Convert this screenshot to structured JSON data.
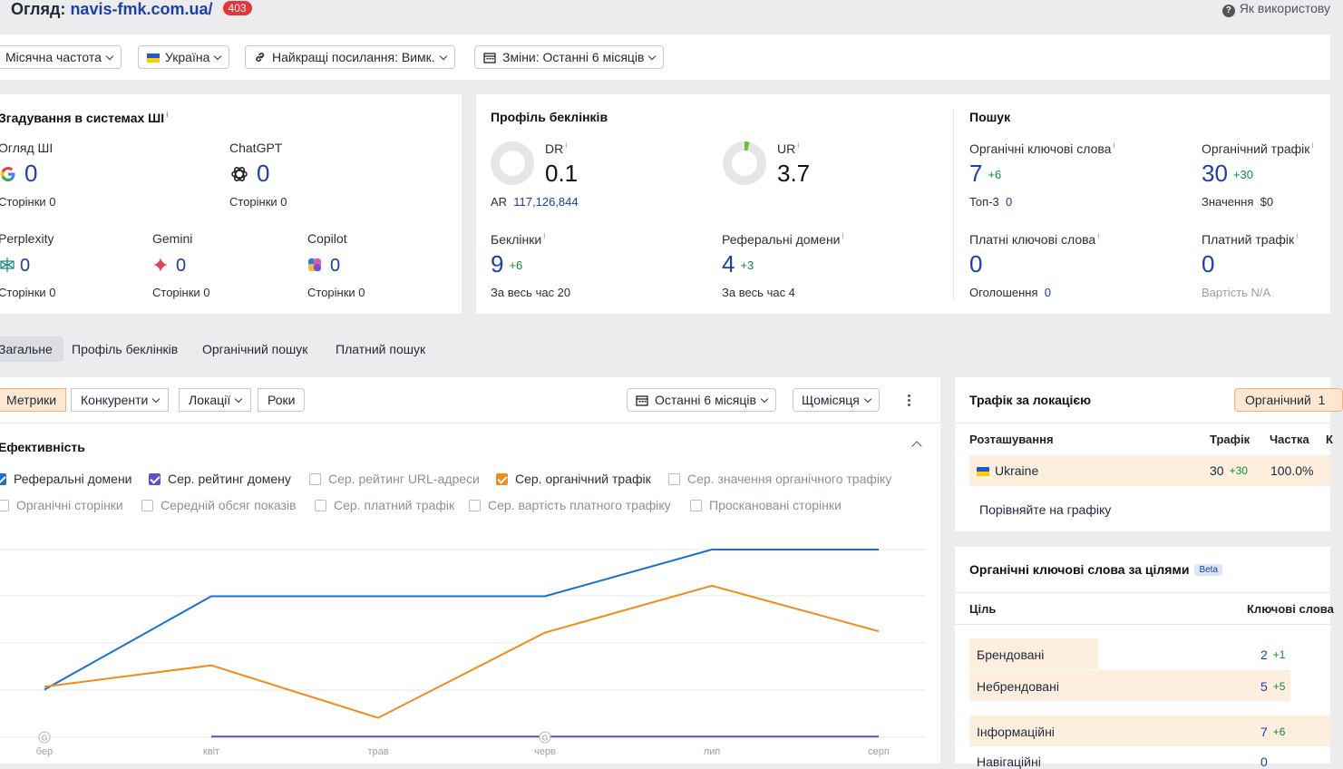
{
  "header": {
    "title_prefix": "Огляд:",
    "domain": "navis-fmk.com.ua/",
    "badge": "403",
    "help_label": "Як використову"
  },
  "filters": {
    "frequency": "Місячна частота",
    "country": "Україна",
    "best_links": "Найкращі посилання: Вимк.",
    "changes": "Зміни: Останні 6 місяців"
  },
  "ai_card": {
    "title": "Згадування в системах ШІ",
    "google_label": "Огляд ШІ",
    "google_value": "0",
    "google_pages": "Сторінки  0",
    "chatgpt_label": "ChatGPT",
    "chatgpt_value": "0",
    "chatgpt_pages": "Сторінки  0",
    "perplexity_label": "Perplexity",
    "perplexity_value": "0",
    "perplexity_pages": "Сторінки  0",
    "gemini_label": "Gemini",
    "gemini_value": "0",
    "gemini_pages": "Сторінки  0",
    "copilot_label": "Copilot",
    "copilot_value": "0",
    "copilot_pages": "Сторінки  0"
  },
  "backlink_card": {
    "title": "Профіль беклінків",
    "dr_label": "DR",
    "dr_value": "0.1",
    "ar_label": "AR",
    "ar_value": "117,126,844",
    "ur_label": "UR",
    "ur_value": "3.7",
    "backlinks_label": "Беклінки",
    "backlinks_value": "9",
    "backlinks_delta": "+6",
    "backlinks_all": "За весь час  20",
    "refdomains_label": "Реферальні домени",
    "refdomains_value": "4",
    "refdomains_delta": "+3",
    "refdomains_all": "За весь час  4"
  },
  "search_card": {
    "title": "Пошук",
    "org_kw_label": "Органічні ключові слова",
    "org_kw_value": "7",
    "org_kw_delta": "+6",
    "top3_label": "Топ-3",
    "top3_value": "0",
    "org_traffic_label": "Органічний трафік",
    "org_traffic_value": "30",
    "org_traffic_delta": "+30",
    "value_label": "Значення",
    "value_value": "$0",
    "paid_kw_label": "Платні ключові слова",
    "paid_kw_value": "0",
    "ads_label": "Оголошення",
    "ads_value": "0",
    "paid_traffic_label": "Платний трафік",
    "paid_traffic_value": "0",
    "cost_label": "Вартість  N/A"
  },
  "tabs": [
    "Загальне",
    "Профіль беклінків",
    "Органічний пошук",
    "Платний пошук"
  ],
  "chart_panel": {
    "seg_metrics": "Метрики",
    "seg_competitors": "Конкуренти",
    "seg_locations": "Локації",
    "seg_years": "Роки",
    "period": "Останні 6 місяців",
    "interval": "Щомісяця",
    "section_title": "Ефективність",
    "checks": [
      "Реферальні домени",
      "Сер. рейтинг домену",
      "Сер. рейтинг URL-адреси",
      "Сер. органічний трафік",
      "Сер. значення органічного трафіку",
      "Органічні сторінки",
      "Середній обсяг показів",
      "Сер. платний трафік",
      "Сер. вартість платного трафіку",
      "Проскановані сторінки"
    ],
    "x_labels": [
      "бер",
      "квіт",
      "трав",
      "черв",
      "лип",
      "серп"
    ],
    "marker": "G",
    "colors": {
      "ref_domains": "#1b6fd0",
      "organic_traffic": "#f08c1b",
      "domain_rating": "#5e4fc9"
    }
  },
  "chart_data": {
    "type": "line",
    "categories": [
      "бер",
      "квіт",
      "трав",
      "черв",
      "лип",
      "серп"
    ],
    "series": [
      {
        "name": "Реферальні домени",
        "values": [
          1,
          3,
          3,
          3,
          4,
          4
        ]
      },
      {
        "name": "Сер. органічний трафік",
        "values": [
          35,
          50,
          13,
          73,
          106,
          74
        ]
      },
      {
        "name": "Сер. рейтинг домену",
        "values": [
          null,
          0.1,
          0.1,
          0.1,
          0.1,
          0.1
        ]
      }
    ],
    "grid": true
  },
  "location_card": {
    "title": "Трафік за локацією",
    "toggle": "Органічний",
    "toggle_extra": "1",
    "col_location": "Розташування",
    "col_traffic": "Трафік",
    "col_share": "Частка",
    "col_extra": "К",
    "row_country": "Ukraine",
    "row_traffic": "30",
    "row_delta": "+30",
    "row_share": "100.0%",
    "compare": "Порівняйте на графіку"
  },
  "intent_card": {
    "title": "Органічні ключові слова за цілями",
    "beta": "Beta",
    "col_intent": "Ціль",
    "col_keywords": "Ключові слова",
    "rows": [
      {
        "label": "Брендовані",
        "value": "2",
        "delta": "+1"
      },
      {
        "label": "Небрендовані",
        "value": "5",
        "delta": "+5"
      },
      {
        "label": "Інформаційні",
        "value": "7",
        "delta": "+6"
      },
      {
        "label": "Навігаційні",
        "value": "0",
        "delta": ""
      }
    ]
  }
}
